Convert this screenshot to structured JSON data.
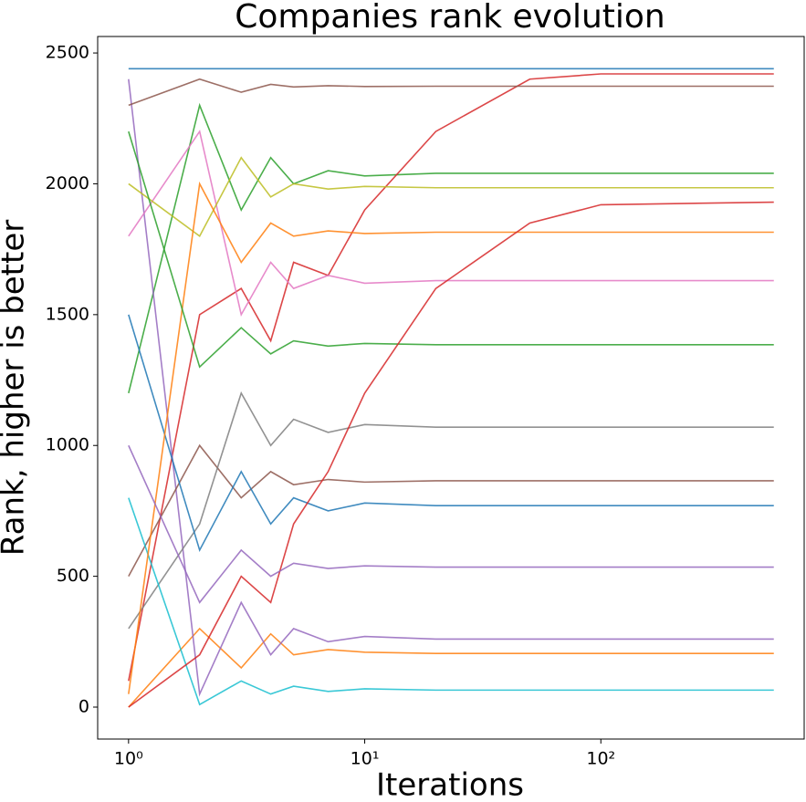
{
  "chart_data": {
    "type": "line",
    "title": "Companies rank evolution",
    "x_label": "Iterations",
    "y_label": "Rank, higher is better",
    "xscale": "log",
    "xlim": [
      0.74,
      726
    ],
    "ylim": [
      -122,
      2563
    ],
    "xticks": [
      {
        "value": 1,
        "label": "10⁰"
      },
      {
        "value": 10,
        "label": "10¹"
      },
      {
        "value": 100,
        "label": "10²"
      }
    ],
    "yticks": [
      0,
      500,
      1000,
      1500,
      2000,
      2500
    ],
    "grid": false,
    "x": [
      1,
      2,
      3,
      4,
      5,
      7,
      10,
      20,
      50,
      100,
      540
    ],
    "series": [
      {
        "color": "#1f77b4",
        "values": [
          2440,
          2440,
          2440,
          2440,
          2440,
          2440,
          2440,
          2440,
          2440,
          2440,
          2440
        ]
      },
      {
        "color": "#ff7f0e",
        "values": [
          0,
          300,
          150,
          280,
          200,
          220,
          210,
          205,
          205,
          205,
          205
        ]
      },
      {
        "color": "#2ca02c",
        "values": [
          1200,
          2300,
          1900,
          2100,
          2000,
          2050,
          2030,
          2040,
          2040,
          2040,
          2040
        ]
      },
      {
        "color": "#d62728",
        "values": [
          100,
          1500,
          1600,
          1400,
          1700,
          1650,
          1900,
          2200,
          2400,
          2420,
          2420
        ]
      },
      {
        "color": "#9467bd",
        "values": [
          2400,
          50,
          400,
          200,
          300,
          250,
          270,
          260,
          260,
          260,
          260
        ]
      },
      {
        "color": "#8c564b",
        "values": [
          500,
          1000,
          800,
          900,
          850,
          870,
          860,
          865,
          865,
          865,
          865
        ]
      },
      {
        "color": "#e377c2",
        "values": [
          1800,
          2200,
          1500,
          1700,
          1600,
          1650,
          1620,
          1630,
          1630,
          1630,
          1630
        ]
      },
      {
        "color": "#7f7f7f",
        "values": [
          300,
          700,
          1200,
          1000,
          1100,
          1050,
          1080,
          1070,
          1070,
          1070,
          1070
        ]
      },
      {
        "color": "#bcbd22",
        "values": [
          2000,
          1800,
          2100,
          1950,
          2000,
          1980,
          1990,
          1985,
          1985,
          1985,
          1985
        ]
      },
      {
        "color": "#17becf",
        "values": [
          800,
          10,
          100,
          50,
          80,
          60,
          70,
          65,
          65,
          65,
          65
        ]
      },
      {
        "color": "#1f77b4",
        "values": [
          1500,
          600,
          900,
          700,
          800,
          750,
          780,
          770,
          770,
          770,
          770
        ]
      },
      {
        "color": "#ff7f0e",
        "values": [
          50,
          2000,
          1700,
          1850,
          1800,
          1820,
          1810,
          1815,
          1815,
          1815,
          1815
        ]
      },
      {
        "color": "#2ca02c",
        "values": [
          2200,
          1300,
          1450,
          1350,
          1400,
          1380,
          1390,
          1385,
          1385,
          1385,
          1385
        ]
      },
      {
        "color": "#d62728",
        "values": [
          0,
          200,
          500,
          400,
          700,
          900,
          1200,
          1600,
          1850,
          1920,
          1930
        ]
      },
      {
        "color": "#9467bd",
        "values": [
          1000,
          400,
          600,
          500,
          550,
          530,
          540,
          535,
          535,
          535,
          535
        ]
      },
      {
        "color": "#8c564b",
        "values": [
          2300,
          2400,
          2350,
          2380,
          2370,
          2375,
          2372,
          2373,
          2373,
          2373,
          2373
        ]
      }
    ]
  }
}
